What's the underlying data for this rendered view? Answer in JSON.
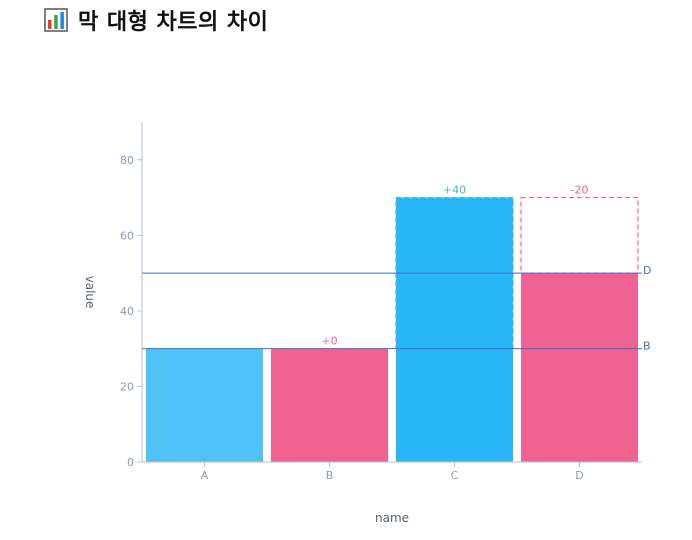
{
  "page": {
    "title": "막 대형 차트의 차이",
    "icon": "bar-chart-icon"
  },
  "colors": {
    "light_blue": "#4fc3f7",
    "pink": "#f06292",
    "deep_blue": "#29b6f6",
    "reference_line": "#3b6fc4",
    "axis": "#b6c2d6"
  },
  "chart_data": {
    "type": "bar",
    "xlabel": "name",
    "ylabel": "value",
    "ylim": [
      0,
      90
    ],
    "yticks": [
      0,
      20,
      40,
      60,
      80
    ],
    "categories": [
      "A",
      "B",
      "C",
      "D"
    ],
    "values": [
      30,
      30,
      70,
      50
    ],
    "bar_colors": [
      "#4fc3f7",
      "#f06292",
      "#29b6f6",
      "#f06292"
    ],
    "differences": [
      {
        "category": "B",
        "from": 30,
        "to": 30,
        "label": "+0",
        "color": "#f06292"
      },
      {
        "category": "C",
        "from": 30,
        "to": 70,
        "label": "+40",
        "color": "#4fb3d9"
      },
      {
        "category": "D",
        "from": 50,
        "to": 70,
        "label": "-20",
        "color": "#f06292"
      }
    ],
    "reference_lines": [
      {
        "label": "B",
        "value": 30
      },
      {
        "label": "D",
        "value": 50
      }
    ]
  }
}
